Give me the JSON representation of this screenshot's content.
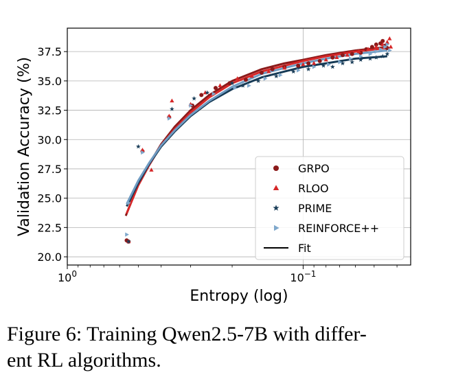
{
  "chart_data": {
    "type": "scatter",
    "title": "",
    "xlabel": "Entropy (log)",
    "ylabel": "Validation Accuracy (%)",
    "xscale": "log",
    "xaxis_inverted": true,
    "xlim": [
      1.0,
      0.035
    ],
    "ylim": [
      19.3,
      39.5
    ],
    "xticks": [
      {
        "value": 1.0,
        "base": "10",
        "exp": "0"
      },
      {
        "value": 0.1,
        "base": "10",
        "exp": "−1"
      }
    ],
    "yticks": [
      20.0,
      22.5,
      25.0,
      27.5,
      30.0,
      32.5,
      35.0,
      37.5
    ],
    "ytick_labels": [
      "20.0",
      "22.5",
      "25.0",
      "27.5",
      "30.0",
      "32.5",
      "35.0",
      "37.5"
    ],
    "grid": true,
    "legend_position": "lower-right",
    "legend": [
      "GRPO",
      "RLOO",
      "PRIME",
      "REINFORCE++",
      "Fit"
    ],
    "fit_label": "Fit",
    "series": [
      {
        "name": "GRPO",
        "marker": "circle",
        "color": "#8b1a1a",
        "points": [
          [
            0.56,
            21.4
          ],
          [
            0.55,
            21.3
          ],
          [
            0.48,
            29.0
          ],
          [
            0.37,
            31.9
          ],
          [
            0.295,
            32.9
          ],
          [
            0.27,
            33.8
          ],
          [
            0.235,
            34.4
          ],
          [
            0.205,
            34.8
          ],
          [
            0.175,
            35.1
          ],
          [
            0.15,
            35.7
          ],
          [
            0.135,
            36.0
          ],
          [
            0.12,
            36.2
          ],
          [
            0.105,
            36.3
          ],
          [
            0.095,
            36.5
          ],
          [
            0.085,
            36.7
          ],
          [
            0.075,
            37.0
          ],
          [
            0.068,
            37.2
          ],
          [
            0.062,
            37.3
          ],
          [
            0.057,
            37.4
          ],
          [
            0.054,
            37.7
          ],
          [
            0.051,
            37.9
          ],
          [
            0.049,
            38.1
          ],
          [
            0.047,
            38.2
          ],
          [
            0.046,
            38.4
          ],
          [
            0.045,
            38.0
          ],
          [
            0.044,
            37.8
          ]
        ]
      },
      {
        "name": "RLOO",
        "marker": "triangle",
        "color": "#d62728",
        "points": [
          [
            0.55,
            21.3
          ],
          [
            0.48,
            29.1
          ],
          [
            0.44,
            27.4
          ],
          [
            0.37,
            32.0
          ],
          [
            0.36,
            33.3
          ],
          [
            0.3,
            33.0
          ],
          [
            0.26,
            34.0
          ],
          [
            0.225,
            34.6
          ],
          [
            0.19,
            35.2
          ],
          [
            0.165,
            35.4
          ],
          [
            0.14,
            35.8
          ],
          [
            0.12,
            36.1
          ],
          [
            0.1,
            36.4
          ],
          [
            0.09,
            36.5
          ],
          [
            0.08,
            36.8
          ],
          [
            0.072,
            37.0
          ],
          [
            0.065,
            37.2
          ],
          [
            0.058,
            37.5
          ],
          [
            0.053,
            37.7
          ],
          [
            0.049,
            37.9
          ],
          [
            0.046,
            38.1
          ],
          [
            0.044,
            38.3
          ],
          [
            0.043,
            38.6
          ],
          [
            0.0425,
            37.9
          ]
        ]
      },
      {
        "name": "PRIME",
        "marker": "star",
        "color": "#1c3f5a",
        "points": [
          [
            0.55,
            21.3
          ],
          [
            0.5,
            29.4
          ],
          [
            0.36,
            32.6
          ],
          [
            0.29,
            33.5
          ],
          [
            0.255,
            34.0
          ],
          [
            0.2,
            34.8
          ],
          [
            0.18,
            34.6
          ],
          [
            0.155,
            35.0
          ],
          [
            0.13,
            35.4
          ],
          [
            0.11,
            35.8
          ],
          [
            0.095,
            36.0
          ],
          [
            0.082,
            36.3
          ],
          [
            0.075,
            36.2
          ],
          [
            0.068,
            36.5
          ],
          [
            0.062,
            36.6
          ],
          [
            0.057,
            36.8
          ],
          [
            0.052,
            36.9
          ],
          [
            0.049,
            37.0
          ],
          [
            0.046,
            37.1
          ],
          [
            0.044,
            37.3
          ]
        ]
      },
      {
        "name": "REINFORCE++",
        "marker": "triangle-right",
        "color": "#7fa8cc",
        "points": [
          [
            0.56,
            21.9
          ],
          [
            0.55,
            24.6
          ],
          [
            0.48,
            28.9
          ],
          [
            0.37,
            31.8
          ],
          [
            0.3,
            32.9
          ],
          [
            0.24,
            33.9
          ],
          [
            0.195,
            34.4
          ],
          [
            0.17,
            34.6
          ],
          [
            0.145,
            35.2
          ],
          [
            0.125,
            35.5
          ],
          [
            0.105,
            35.9
          ],
          [
            0.09,
            36.2
          ],
          [
            0.078,
            36.4
          ],
          [
            0.07,
            36.6
          ],
          [
            0.063,
            36.9
          ],
          [
            0.057,
            37.1
          ],
          [
            0.052,
            37.3
          ],
          [
            0.049,
            37.5
          ],
          [
            0.047,
            37.7
          ],
          [
            0.045,
            37.9
          ],
          [
            0.044,
            38.1
          ],
          [
            0.043,
            37.6
          ]
        ]
      }
    ],
    "fits": [
      {
        "name": "GRPO",
        "color": "#8b1a1a",
        "x_range": [
          0.565,
          0.044
        ],
        "points": [
          [
            0.565,
            23.5
          ],
          [
            0.5,
            26.2
          ],
          [
            0.45,
            27.9
          ],
          [
            0.4,
            29.6
          ],
          [
            0.35,
            31.1
          ],
          [
            0.3,
            32.5
          ],
          [
            0.25,
            33.8
          ],
          [
            0.2,
            35.0
          ],
          [
            0.15,
            36.0
          ],
          [
            0.12,
            36.5
          ],
          [
            0.1,
            36.8
          ],
          [
            0.08,
            37.2
          ],
          [
            0.06,
            37.6
          ],
          [
            0.044,
            37.9
          ]
        ]
      },
      {
        "name": "RLOO",
        "color": "#d62728",
        "x_range": [
          0.56,
          0.044
        ],
        "points": [
          [
            0.56,
            23.7
          ],
          [
            0.5,
            26.1
          ],
          [
            0.45,
            27.8
          ],
          [
            0.4,
            29.5
          ],
          [
            0.35,
            30.9
          ],
          [
            0.3,
            32.3
          ],
          [
            0.25,
            33.6
          ],
          [
            0.2,
            34.8
          ],
          [
            0.15,
            35.8
          ],
          [
            0.12,
            36.3
          ],
          [
            0.1,
            36.7
          ],
          [
            0.08,
            37.1
          ],
          [
            0.06,
            37.5
          ],
          [
            0.044,
            37.8
          ]
        ]
      },
      {
        "name": "PRIME",
        "color": "#163a55",
        "x_range": [
          0.56,
          0.044
        ],
        "points": [
          [
            0.56,
            24.3
          ],
          [
            0.5,
            26.3
          ],
          [
            0.45,
            27.9
          ],
          [
            0.4,
            29.4
          ],
          [
            0.35,
            30.7
          ],
          [
            0.3,
            32.0
          ],
          [
            0.25,
            33.2
          ],
          [
            0.2,
            34.3
          ],
          [
            0.15,
            35.3
          ],
          [
            0.12,
            35.8
          ],
          [
            0.1,
            36.2
          ],
          [
            0.08,
            36.5
          ],
          [
            0.06,
            36.9
          ],
          [
            0.044,
            37.1
          ]
        ]
      },
      {
        "name": "REINFORCE++",
        "color": "#6f9bc2",
        "x_range": [
          0.56,
          0.044
        ],
        "points": [
          [
            0.56,
            24.5
          ],
          [
            0.5,
            26.5
          ],
          [
            0.45,
            28.0
          ],
          [
            0.4,
            29.5
          ],
          [
            0.35,
            30.8
          ],
          [
            0.3,
            32.1
          ],
          [
            0.25,
            33.3
          ],
          [
            0.2,
            34.5
          ],
          [
            0.15,
            35.6
          ],
          [
            0.12,
            36.1
          ],
          [
            0.1,
            36.5
          ],
          [
            0.08,
            36.9
          ],
          [
            0.06,
            37.3
          ],
          [
            0.044,
            37.6
          ]
        ]
      }
    ]
  },
  "caption": "Figure 6: Training Qwen2.5-7B with differ-\nent RL algorithms."
}
